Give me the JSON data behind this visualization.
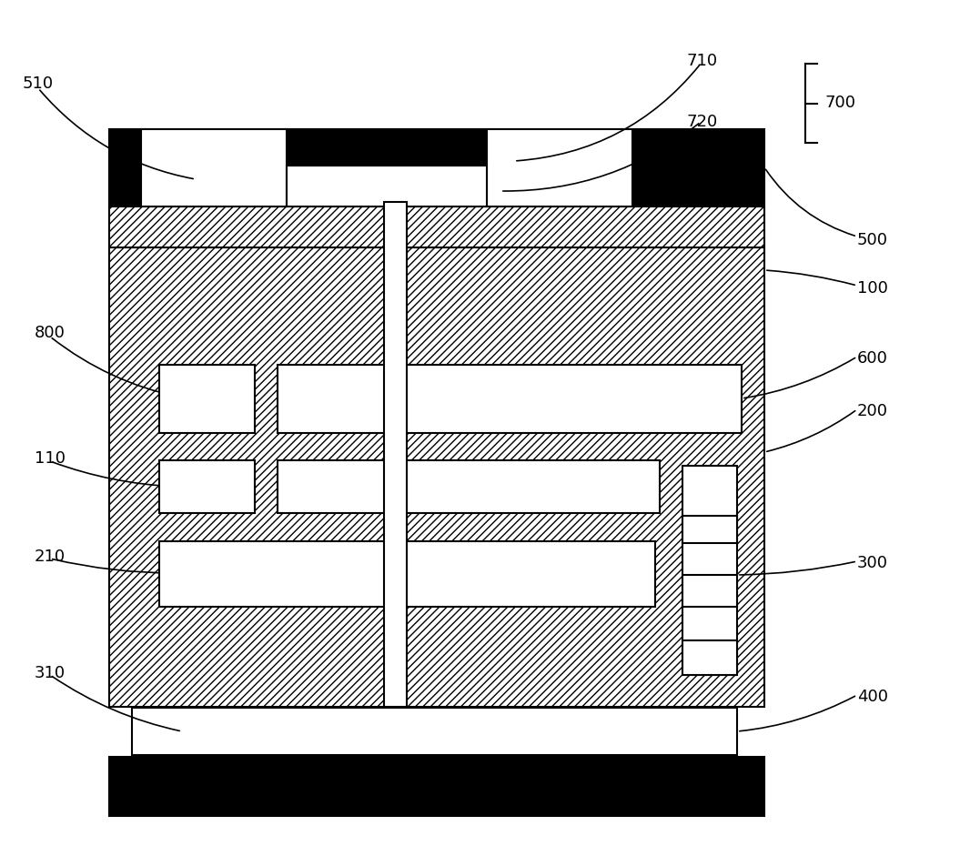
{
  "fig_width": 10.55,
  "fig_height": 9.52,
  "bg_color": "#ffffff",
  "black": "#000000",
  "white": "#ffffff"
}
